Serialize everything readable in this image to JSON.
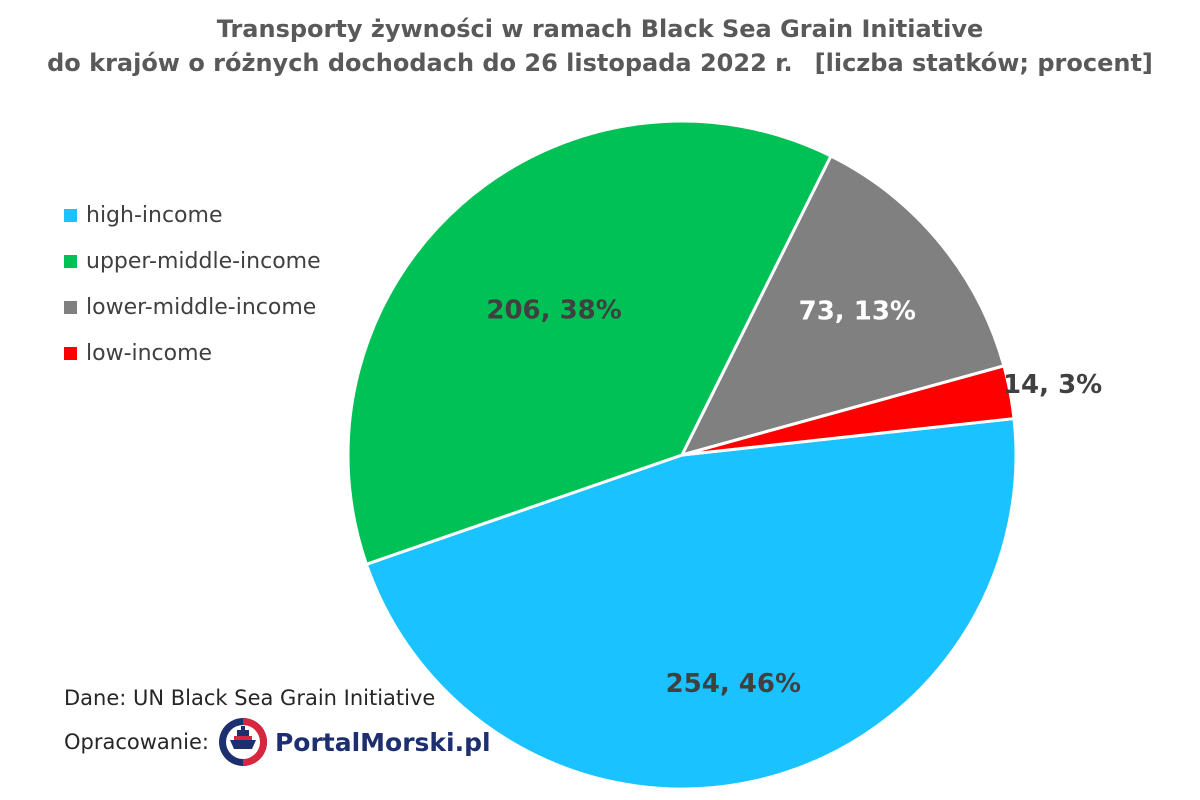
{
  "title": {
    "line1": "Transporty żywności w ramach Black Sea Grain Initiative",
    "line2": "do krajów o różnych dochodach do 26 listopada 2022 r.",
    "units": "[liczba statków; procent]"
  },
  "chart_data": {
    "type": "pie",
    "categories": [
      "high-income",
      "upper-middle-income",
      "lower-middle-income",
      "low-income"
    ],
    "values": [
      254,
      206,
      73,
      14
    ],
    "percent_labels": [
      "46%",
      "38%",
      "13%",
      "3%"
    ],
    "data_labels": [
      "254, 46%",
      "206, 38%",
      "73, 13%",
      "14, 3%"
    ],
    "colors": [
      "#1ac3ff",
      "#00c155",
      "#808080",
      "#ff0000"
    ],
    "legend_position": "left"
  },
  "footer": {
    "source": "Dane: UN Black Sea Grain Initiative",
    "credit_label": "Opracowanie:",
    "logo_text": "PortalMorski.pl"
  }
}
